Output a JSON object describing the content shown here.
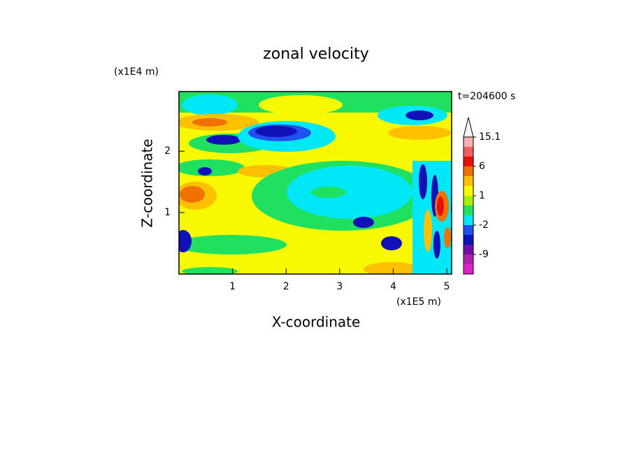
{
  "chart_data": {
    "type": "contour",
    "title": "zonal velocity",
    "x_label": "X-coordinate",
    "y_label": "Z-coordinate",
    "x_unit": "(x1E5 m)",
    "y_unit": "(x1E4 m)",
    "time_label": "t=204600 s",
    "xlim": [
      0,
      5.09
    ],
    "ylim": [
      0,
      2.97
    ],
    "xticks": [
      1,
      2,
      3,
      4,
      5
    ],
    "yticks": [
      1,
      2
    ],
    "colorbar": {
      "levels": [
        -15,
        -12,
        -9,
        -6,
        -4,
        -2,
        -1,
        0,
        1,
        2,
        4,
        6,
        9,
        12,
        15.1
      ],
      "colors": [
        "#e020c8",
        "#b020b0",
        "#7010a8",
        "#1010b8",
        "#2050f0",
        "#00e8f8",
        "#20e060",
        "#a8f000",
        "#f8f800",
        "#ffc000",
        "#f07000",
        "#e81000",
        "#f06060",
        "#f8b0b0"
      ],
      "extend_color": "#fff4f4",
      "ticks": [
        15.1,
        6,
        1,
        -2,
        -9
      ]
    }
  }
}
